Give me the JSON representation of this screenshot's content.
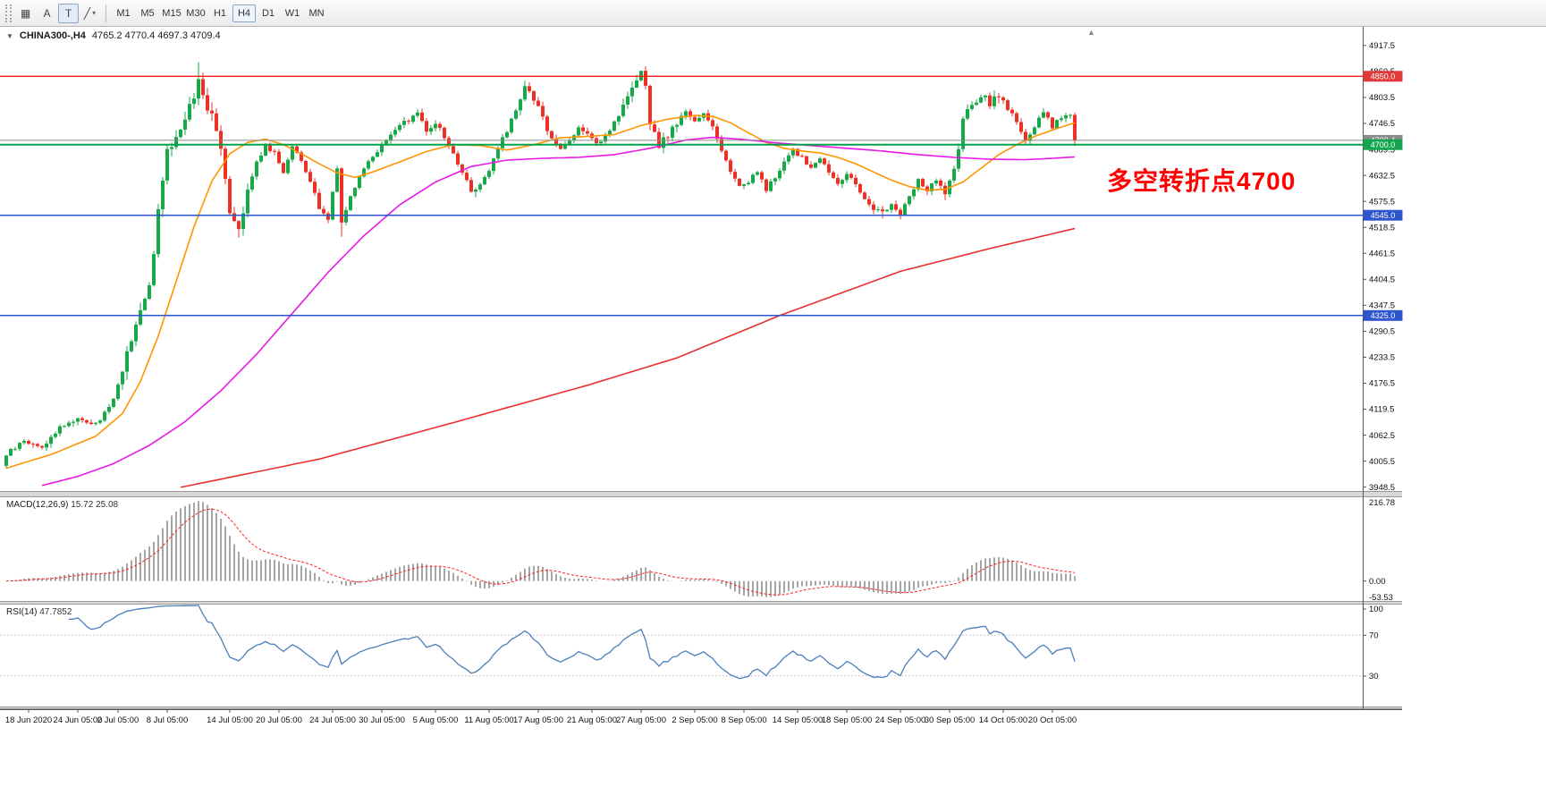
{
  "toolbar": {
    "tools": [
      {
        "name": "grid",
        "glyph": "▦"
      },
      {
        "name": "text-label",
        "glyph": "A"
      },
      {
        "name": "text-tool",
        "glyph": "T"
      },
      {
        "name": "line-tools",
        "glyph": "╱",
        "dropdown": "▾"
      }
    ],
    "timeframes": [
      "M1",
      "M5",
      "M15",
      "M30",
      "H1",
      "H4",
      "D1",
      "W1",
      "MN"
    ],
    "active_timeframe": "H4"
  },
  "chart": {
    "symbol": "CHINA300-,H4",
    "ohlc": "4765.2 4770.4 4697.3 4709.4",
    "collapse_icon": "▼",
    "shift_marker": "▲",
    "annotation": {
      "text": "多空转折点4700",
      "color": "#ff0000"
    }
  },
  "macd_label": {
    "name": "MACD(12,26,9)",
    "values": "15.72 25.08"
  },
  "rsi_label": {
    "name": "RSI(14)",
    "values": "47.7852"
  },
  "chart_data": {
    "type": "candlestick",
    "symbol": "CHINA300-",
    "timeframe": "H4",
    "title": "CHINA300-,H4 4765.2 4770.4 4697.3 4709.4",
    "price_axis": {
      "min": 3940,
      "max": 4931,
      "ticks": [
        "4917.5",
        "4860.5",
        "4803.5",
        "4746.5",
        "4689.5",
        "4632.5",
        "4575.5",
        "4518.5",
        "4461.5",
        "4404.5",
        "4347.5",
        "4290.5",
        "4233.5",
        "4176.5",
        "4119.5",
        "4062.5",
        "4005.5",
        "3948.5"
      ]
    },
    "x_labels": [
      {
        "i": 5,
        "t": "18 Jun 2020"
      },
      {
        "i": 16,
        "t": "24 Jun 05:00"
      },
      {
        "i": 25,
        "t": "2 Jul 05:00"
      },
      {
        "i": 36,
        "t": "8 Jul 05:00"
      },
      {
        "i": 50,
        "t": "14 Jul 05:00"
      },
      {
        "i": 61,
        "t": "20 Jul 05:00"
      },
      {
        "i": 73,
        "t": "24 Jul 05:00"
      },
      {
        "i": 84,
        "t": "30 Jul 05:00"
      },
      {
        "i": 96,
        "t": "5 Aug 05:00"
      },
      {
        "i": 108,
        "t": "11 Aug 05:00"
      },
      {
        "i": 119,
        "t": "17 Aug 05:00"
      },
      {
        "i": 131,
        "t": "21 Aug 05:00"
      },
      {
        "i": 142,
        "t": "27 Aug 05:00"
      },
      {
        "i": 154,
        "t": "2 Sep 05:00"
      },
      {
        "i": 165,
        "t": "8 Sep 05:00"
      },
      {
        "i": 177,
        "t": "14 Sep 05:00"
      },
      {
        "i": 188,
        "t": "18 Sep 05:00"
      },
      {
        "i": 200,
        "t": "24 Sep 05:00"
      },
      {
        "i": 211,
        "t": "30 Sep 05:00"
      },
      {
        "i": 223,
        "t": "14 Oct 05:00"
      },
      {
        "i": 234,
        "t": "20 Oct 05:00"
      }
    ],
    "h_lines": [
      {
        "price": 4850.0,
        "color": "#ff1a1a",
        "width": 1.4,
        "badge": "4850.0",
        "badge_color": "#e03a3a"
      },
      {
        "price": 4709.4,
        "color": "#8a8a8a",
        "width": 1.0,
        "badge": "4709.4",
        "badge_color": "#8a8a8a"
      },
      {
        "price": 4700.0,
        "color": "#00a24d",
        "width": 2.0,
        "badge": "4700.0",
        "badge_color": "#12a64f"
      },
      {
        "price": 4545.0,
        "color": "#2f55cd",
        "width": 1.5,
        "badge": "4545.0",
        "badge_color": "#2f55cd"
      },
      {
        "price": 4325.0,
        "color": "#2f55cd",
        "width": 1.5,
        "badge": "4325.0",
        "badge_color": "#2f55cd"
      }
    ],
    "ma_lines": [
      {
        "name": "fast-orange",
        "color": "#ff9500",
        "width": 1.6,
        "points": [
          [
            0,
            3990
          ],
          [
            10,
            4020
          ],
          [
            20,
            4060
          ],
          [
            26,
            4110
          ],
          [
            30,
            4180
          ],
          [
            34,
            4280
          ],
          [
            38,
            4400
          ],
          [
            42,
            4520
          ],
          [
            46,
            4620
          ],
          [
            50,
            4680
          ],
          [
            54,
            4705
          ],
          [
            58,
            4712
          ],
          [
            62,
            4700
          ],
          [
            66,
            4680
          ],
          [
            70,
            4658
          ],
          [
            74,
            4638
          ],
          [
            78,
            4628
          ],
          [
            82,
            4640
          ],
          [
            88,
            4662
          ],
          [
            94,
            4685
          ],
          [
            100,
            4700
          ],
          [
            106,
            4698
          ],
          [
            112,
            4688
          ],
          [
            118,
            4700
          ],
          [
            124,
            4715
          ],
          [
            130,
            4718
          ],
          [
            136,
            4722
          ],
          [
            142,
            4742
          ],
          [
            148,
            4756
          ],
          [
            154,
            4764
          ],
          [
            158,
            4762
          ],
          [
            162,
            4748
          ],
          [
            166,
            4726
          ],
          [
            170,
            4705
          ],
          [
            174,
            4692
          ],
          [
            178,
            4686
          ],
          [
            182,
            4682
          ],
          [
            186,
            4672
          ],
          [
            190,
            4658
          ],
          [
            194,
            4640
          ],
          [
            198,
            4622
          ],
          [
            202,
            4608
          ],
          [
            206,
            4600
          ],
          [
            210,
            4602
          ],
          [
            214,
            4618
          ],
          [
            218,
            4648
          ],
          [
            222,
            4678
          ],
          [
            226,
            4700
          ],
          [
            230,
            4718
          ],
          [
            234,
            4732
          ],
          [
            239,
            4748
          ]
        ]
      },
      {
        "name": "medium-magenta",
        "color": "#e619e6",
        "width": 1.6,
        "points": [
          [
            8,
            3952
          ],
          [
            16,
            3972
          ],
          [
            24,
            4000
          ],
          [
            32,
            4040
          ],
          [
            40,
            4092
          ],
          [
            48,
            4160
          ],
          [
            56,
            4240
          ],
          [
            64,
            4330
          ],
          [
            72,
            4420
          ],
          [
            80,
            4500
          ],
          [
            88,
            4568
          ],
          [
            96,
            4618
          ],
          [
            104,
            4652
          ],
          [
            112,
            4666
          ],
          [
            120,
            4670
          ],
          [
            128,
            4672
          ],
          [
            136,
            4678
          ],
          [
            144,
            4692
          ],
          [
            152,
            4710
          ],
          [
            158,
            4716
          ],
          [
            164,
            4712
          ],
          [
            172,
            4704
          ],
          [
            180,
            4698
          ],
          [
            188,
            4692
          ],
          [
            196,
            4686
          ],
          [
            204,
            4678
          ],
          [
            212,
            4672
          ],
          [
            220,
            4668
          ],
          [
            228,
            4667
          ],
          [
            234,
            4670
          ],
          [
            239,
            4673
          ]
        ]
      },
      {
        "name": "slow-red",
        "color": "#e83030",
        "width": 1.6,
        "points": [
          [
            39,
            3948
          ],
          [
            70,
            4010
          ],
          [
            100,
            4090
          ],
          [
            130,
            4172
          ],
          [
            150,
            4232
          ],
          [
            173,
            4325
          ],
          [
            200,
            4422
          ],
          [
            220,
            4472
          ],
          [
            239,
            4516
          ]
        ]
      }
    ],
    "candles": {
      "count": 240,
      "spacing_px": 5,
      "up_color": "#15aa47",
      "down_color": "#ee3024",
      "close_waypoints": [
        [
          0,
          4020
        ],
        [
          4,
          4050
        ],
        [
          8,
          4035
        ],
        [
          12,
          4080
        ],
        [
          16,
          4100
        ],
        [
          20,
          4085
        ],
        [
          24,
          4140
        ],
        [
          26,
          4210
        ],
        [
          28,
          4270
        ],
        [
          30,
          4330
        ],
        [
          32,
          4390
        ],
        [
          34,
          4550
        ],
        [
          36,
          4680
        ],
        [
          38,
          4720
        ],
        [
          40,
          4760
        ],
        [
          42,
          4810
        ],
        [
          43,
          4848
        ],
        [
          44,
          4800
        ],
        [
          46,
          4770
        ],
        [
          48,
          4700
        ],
        [
          50,
          4560
        ],
        [
          52,
          4520
        ],
        [
          54,
          4600
        ],
        [
          56,
          4660
        ],
        [
          58,
          4700
        ],
        [
          60,
          4680
        ],
        [
          62,
          4640
        ],
        [
          64,
          4700
        ],
        [
          66,
          4660
        ],
        [
          68,
          4620
        ],
        [
          70,
          4560
        ],
        [
          72,
          4540
        ],
        [
          74,
          4650
        ],
        [
          75,
          4530
        ],
        [
          76,
          4560
        ],
        [
          78,
          4610
        ],
        [
          80,
          4650
        ],
        [
          84,
          4700
        ],
        [
          88,
          4740
        ],
        [
          92,
          4770
        ],
        [
          94,
          4730
        ],
        [
          96,
          4750
        ],
        [
          100,
          4680
        ],
        [
          102,
          4640
        ],
        [
          104,
          4600
        ],
        [
          106,
          4615
        ],
        [
          108,
          4640
        ],
        [
          110,
          4690
        ],
        [
          112,
          4730
        ],
        [
          114,
          4780
        ],
        [
          116,
          4825
        ],
        [
          118,
          4800
        ],
        [
          120,
          4760
        ],
        [
          122,
          4710
        ],
        [
          124,
          4690
        ],
        [
          126,
          4710
        ],
        [
          128,
          4740
        ],
        [
          130,
          4720
        ],
        [
          132,
          4700
        ],
        [
          134,
          4720
        ],
        [
          136,
          4750
        ],
        [
          138,
          4780
        ],
        [
          140,
          4820
        ],
        [
          142,
          4855
        ],
        [
          143,
          4830
        ],
        [
          144,
          4740
        ],
        [
          146,
          4700
        ],
        [
          148,
          4720
        ],
        [
          150,
          4750
        ],
        [
          152,
          4770
        ],
        [
          154,
          4750
        ],
        [
          156,
          4770
        ],
        [
          158,
          4740
        ],
        [
          160,
          4690
        ],
        [
          162,
          4640
        ],
        [
          164,
          4610
        ],
        [
          166,
          4620
        ],
        [
          168,
          4640
        ],
        [
          170,
          4600
        ],
        [
          172,
          4630
        ],
        [
          174,
          4660
        ],
        [
          176,
          4690
        ],
        [
          178,
          4670
        ],
        [
          180,
          4650
        ],
        [
          182,
          4670
        ],
        [
          184,
          4640
        ],
        [
          186,
          4610
        ],
        [
          188,
          4640
        ],
        [
          190,
          4610
        ],
        [
          192,
          4580
        ],
        [
          194,
          4560
        ],
        [
          196,
          4552
        ],
        [
          198,
          4570
        ],
        [
          200,
          4548
        ],
        [
          202,
          4590
        ],
        [
          204,
          4620
        ],
        [
          206,
          4600
        ],
        [
          208,
          4620
        ],
        [
          210,
          4590
        ],
        [
          212,
          4640
        ],
        [
          214,
          4750
        ],
        [
          216,
          4790
        ],
        [
          218,
          4810
        ],
        [
          220,
          4790
        ],
        [
          222,
          4810
        ],
        [
          224,
          4780
        ],
        [
          226,
          4750
        ],
        [
          228,
          4710
        ],
        [
          230,
          4740
        ],
        [
          232,
          4770
        ],
        [
          234,
          4740
        ],
        [
          236,
          4760
        ],
        [
          238,
          4765.2
        ],
        [
          239,
          4709.4
        ]
      ],
      "vol_zones": [
        [
          26,
          54,
          2.2
        ],
        [
          100,
          125,
          1.4
        ],
        [
          138,
          150,
          1.6
        ],
        [
          210,
          222,
          1.6
        ]
      ],
      "high_overrides": {
        "43": 4881,
        "116": 4840,
        "142": 4862,
        "143": 4872
      },
      "low_overrides": {
        "52": 4496,
        "75": 4498,
        "196": 4538,
        "200": 4536
      },
      "last_candle": {
        "open": 4765.2,
        "high": 4770.4,
        "low": 4697.3,
        "close": 4709.4
      }
    },
    "macd": {
      "histogram_color": "#a6a6a6",
      "signal_color": "#ff2020",
      "scale_labels": {
        "max": "216.78",
        "zero": "0.00",
        "min": "-53.53"
      }
    },
    "rsi": {
      "line_color": "#4a7ebb",
      "levels": [
        70,
        30
      ],
      "scale_labels": [
        "100",
        "70",
        "30"
      ]
    }
  }
}
